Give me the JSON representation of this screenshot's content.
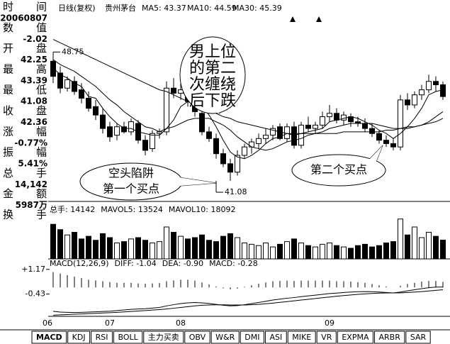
{
  "info_panel": {
    "rows": [
      {
        "label": [
          "时",
          "间"
        ],
        "value": 20060807
      },
      {
        "label": [
          "数",
          "值"
        ],
        "value": -2.02
      },
      {
        "label": [
          "开",
          "盘"
        ],
        "value": 42.25
      },
      {
        "label": [
          "最",
          "高"
        ],
        "value": 43.39
      },
      {
        "label": [
          "最",
          "低"
        ],
        "value": 41.08
      },
      {
        "label": [
          "收",
          "盘"
        ],
        "value": 42.36
      },
      {
        "label": [
          "涨",
          "幅"
        ],
        "value": "-0.77%"
      },
      {
        "label": [
          "振",
          "幅"
        ],
        "value": "5.41%"
      },
      {
        "label": [
          "总",
          "手"
        ],
        "value": "14,142"
      },
      {
        "label": [
          "金",
          "额"
        ],
        "value": "5987万"
      },
      {
        "label": [
          "换",
          "手"
        ]
      }
    ]
  },
  "chart_data": [
    {
      "type": "candlestick",
      "period": "日线(复权)",
      "title": "贵州茅台",
      "categories": [
        "06",
        null,
        null,
        null,
        null,
        null,
        null,
        null,
        "07",
        null,
        null,
        null,
        null,
        null,
        null,
        null,
        null,
        null,
        "08",
        null,
        null,
        null,
        null,
        null,
        null,
        null,
        null,
        null,
        null,
        null,
        null,
        null,
        null,
        null,
        null,
        null,
        null,
        null,
        null,
        "09",
        null,
        null,
        null,
        null,
        null,
        null,
        null,
        null,
        null,
        null,
        null,
        null,
        null,
        null,
        null,
        null
      ],
      "open": [
        48.2,
        47.5,
        46.6,
        47.0,
        46.5,
        46.0,
        45.5,
        45.0,
        44.3,
        43.8,
        44.3,
        44.0,
        44.5,
        43.5,
        43.0,
        43.9,
        44.0,
        46.6,
        46.3,
        46.6,
        45.8,
        45.1,
        44.0,
        43.6,
        42.7,
        42.1,
        41.6,
        42.6,
        43.1,
        43.3,
        43.6,
        43.8,
        44.3,
        43.6,
        44.3,
        43.2,
        44.4,
        44.2,
        44.4,
        44.9,
        45.1,
        44.7,
        44.9,
        44.6,
        44.5,
        44.2,
        43.9,
        43.5,
        43.3,
        43.1,
        45.9,
        45.6,
        46.2,
        46.5,
        47.0,
        46.8
      ],
      "high": [
        48.75,
        47.9,
        47.3,
        47.3,
        46.9,
        46.4,
        45.9,
        45.4,
        44.6,
        44.5,
        44.6,
        44.8,
        44.7,
        43.8,
        44.1,
        44.2,
        47.0,
        47.2,
        46.9,
        47.1,
        46.0,
        45.3,
        44.3,
        43.9,
        43.0,
        42.4,
        42.9,
        43.3,
        43.6,
        43.9,
        44.2,
        44.4,
        44.5,
        44.5,
        44.6,
        44.6,
        44.9,
        44.6,
        45.2,
        45.6,
        45.4,
        45.2,
        45.1,
        44.9,
        44.8,
        44.5,
        44.1,
        43.8,
        43.6,
        46.2,
        46.3,
        46.4,
        46.8,
        47.4,
        47.3,
        47.0
      ],
      "low": [
        46.9,
        46.3,
        46.4,
        46.2,
        45.7,
        45.2,
        44.7,
        43.9,
        43.4,
        43.5,
        43.9,
        43.8,
        43.3,
        42.6,
        42.8,
        43.6,
        43.8,
        46.0,
        45.9,
        45.5,
        44.9,
        43.8,
        43.4,
        42.4,
        41.9,
        41.08,
        41.4,
        42.4,
        42.7,
        43.0,
        43.3,
        43.5,
        43.5,
        43.4,
        43.0,
        43.0,
        44.0,
        43.9,
        44.2,
        44.6,
        44.5,
        44.4,
        44.3,
        44.3,
        44.0,
        43.7,
        43.3,
        43.1,
        42.9,
        42.9,
        45.3,
        45.4,
        45.9,
        46.3,
        46.4,
        45.9
      ],
      "close": [
        47.3,
        46.6,
        47.1,
        46.4,
        46.0,
        45.4,
        45.0,
        44.2,
        43.7,
        44.3,
        44.0,
        44.6,
        43.5,
        42.9,
        43.9,
        44.0,
        46.6,
        46.3,
        46.5,
        45.8,
        45.2,
        44.0,
        43.6,
        42.7,
        42.1,
        41.6,
        42.6,
        43.1,
        43.4,
        43.6,
        43.8,
        44.2,
        43.6,
        44.3,
        43.2,
        44.4,
        44.2,
        44.4,
        44.9,
        45.1,
        44.7,
        45.0,
        44.6,
        44.5,
        44.2,
        43.9,
        43.5,
        43.3,
        43.1,
        45.9,
        45.6,
        46.2,
        46.5,
        47.0,
        46.8,
        46.1
      ],
      "series": [
        {
          "name": "MA5: 43.37",
          "color": "#000000",
          "values": [
            47.8,
            47.4,
            47.2,
            46.9,
            46.7,
            46.1,
            46.0,
            45.4,
            44.9,
            44.5,
            44.2,
            44.2,
            44.0,
            43.9,
            43.8,
            43.8,
            44.2,
            44.7,
            45.5,
            45.8,
            46.1,
            45.6,
            45.0,
            44.3,
            43.5,
            42.8,
            42.5,
            42.4,
            42.6,
            42.9,
            43.3,
            43.6,
            43.7,
            43.9,
            43.8,
            43.9,
            44.0,
            44.1,
            44.2,
            44.6,
            44.7,
            44.8,
            44.9,
            44.8,
            44.6,
            44.4,
            44.1,
            43.9,
            43.6,
            43.9,
            44.3,
            44.8,
            45.4,
            46.2,
            46.4,
            46.5
          ]
        },
        {
          "name": "MA10: 44.59",
          "color": "#000000",
          "values": [
            48.3,
            48.0,
            47.8,
            47.6,
            47.3,
            47.0,
            46.7,
            46.3,
            45.9,
            45.6,
            45.2,
            44.9,
            44.6,
            44.3,
            44.2,
            44.0,
            44.2,
            44.3,
            44.5,
            44.7,
            44.8,
            44.8,
            44.8,
            44.6,
            44.4,
            44.1,
            43.7,
            43.4,
            43.1,
            43.0,
            42.9,
            43.0,
            43.2,
            43.4,
            43.5,
            43.6,
            43.8,
            43.9,
            44.0,
            44.2,
            44.3,
            44.4,
            44.5,
            44.5,
            44.5,
            44.5,
            44.4,
            44.3,
            44.2,
            44.2,
            44.2,
            44.3,
            44.4,
            44.6,
            44.9,
            45.2
          ]
        },
        {
          "name": "MA30: 45.39",
          "color": "#000000",
          "values": [
            49.5,
            49.3,
            49.1,
            48.9,
            48.7,
            48.5,
            48.3,
            48.1,
            47.9,
            47.7,
            47.5,
            47.3,
            47.1,
            46.9,
            46.7,
            46.5,
            46.4,
            46.2,
            46.0,
            45.8,
            45.6,
            45.5,
            45.3,
            45.1,
            44.9,
            44.8,
            44.6,
            44.5,
            44.4,
            44.3,
            44.2,
            44.1,
            44.0,
            43.9,
            43.9,
            43.9,
            43.9,
            43.9,
            43.9,
            43.9,
            43.9,
            44.0,
            44.0,
            44.0,
            44.0,
            44.0,
            44.0,
            44.1,
            44.1,
            44.2,
            44.3,
            44.3,
            44.4,
            44.5,
            44.6,
            44.8
          ]
        }
      ],
      "ylim": [
        39.9,
        51.0
      ],
      "price_marks": [
        48.75,
        41.08
      ],
      "callouts": [
        {
          "lines": [
            "男上位",
            "的第二",
            "次缠绕",
            "后下跌"
          ]
        },
        {
          "lines": [
            "空头陷阱",
            "第一个买点"
          ]
        },
        {
          "lines": [
            "第二个买点"
          ]
        }
      ]
    },
    {
      "type": "bar",
      "legend": [
        "总手: 14142",
        "MAVOL5: 13524",
        "MAVOL10: 18092"
      ],
      "values": [
        26000,
        22000,
        18000,
        20000,
        15000,
        17000,
        14000,
        19000,
        16000,
        12000,
        13000,
        15000,
        16000,
        14000,
        12000,
        13000,
        24000,
        20000,
        17000,
        15000,
        16000,
        18000,
        14000,
        13000,
        17000,
        19000,
        16000,
        12000,
        11000,
        10000,
        12000,
        9000,
        11000,
        13000,
        15000,
        12000,
        10000,
        9000,
        11000,
        12000,
        10000,
        9000,
        8000,
        10000,
        11000,
        9000,
        10000,
        12000,
        13000,
        30000,
        18000,
        24000,
        16000,
        20000,
        17000,
        14142
      ],
      "ylim": [
        0,
        32000
      ]
    },
    {
      "type": "macd",
      "title": "MACD(12,26,9)",
      "series": [
        {
          "name": "DIFF: -1.04",
          "color": "#000000",
          "values": [
            -1.55,
            -1.6,
            -1.62,
            -1.63,
            -1.62,
            -1.6,
            -1.58,
            -1.56,
            -1.54,
            -1.5,
            -1.46,
            -1.42,
            -1.4,
            -1.38,
            -1.34,
            -1.3,
            -1.2,
            -1.12,
            -1.05,
            -1.0,
            -0.98,
            -1.0,
            -1.04,
            -1.1,
            -1.16,
            -1.2,
            -1.18,
            -1.12,
            -1.05,
            -0.98,
            -0.9,
            -0.82,
            -0.76,
            -0.7,
            -0.66,
            -0.6,
            -0.55,
            -0.5,
            -0.45,
            -0.4,
            -0.37,
            -0.33,
            -0.3,
            -0.28,
            -0.27,
            -0.28,
            -0.3,
            -0.33,
            -0.36,
            -0.3,
            -0.22,
            -0.15,
            -0.08,
            -0.02,
            0.02,
            0.03
          ]
        },
        {
          "name": "DEA: -0.90",
          "color": "#000000",
          "values": [
            -1.8,
            -1.78,
            -1.76,
            -1.74,
            -1.72,
            -1.7,
            -1.68,
            -1.66,
            -1.64,
            -1.62,
            -1.59,
            -1.56,
            -1.53,
            -1.5,
            -1.47,
            -1.44,
            -1.4,
            -1.35,
            -1.3,
            -1.25,
            -1.2,
            -1.16,
            -1.14,
            -1.13,
            -1.13,
            -1.14,
            -1.14,
            -1.14,
            -1.12,
            -1.1,
            -1.06,
            -1.02,
            -0.97,
            -0.92,
            -0.87,
            -0.82,
            -0.77,
            -0.72,
            -0.67,
            -0.62,
            -0.57,
            -0.53,
            -0.49,
            -0.45,
            -0.42,
            -0.39,
            -0.37,
            -0.36,
            -0.36,
            -0.35,
            -0.33,
            -0.3,
            -0.27,
            -0.23,
            -0.19,
            -0.15
          ]
        },
        {
          "name": "MACD: -0.28",
          "color": "#000000",
          "values": [
            1.0,
            0.9,
            0.8,
            0.7,
            0.6,
            0.5,
            0.45,
            0.4,
            0.35,
            0.3,
            0.3,
            0.3,
            0.26,
            0.24,
            0.26,
            0.28,
            0.4,
            0.46,
            0.5,
            0.5,
            0.44,
            0.32,
            0.2,
            0.06,
            -0.06,
            -0.12,
            -0.08,
            0.04,
            0.14,
            0.24,
            0.32,
            0.4,
            0.42,
            0.44,
            0.42,
            0.44,
            0.44,
            0.44,
            0.44,
            0.44,
            0.4,
            0.4,
            0.38,
            0.34,
            0.3,
            0.22,
            0.14,
            0.06,
            0,
            0.1,
            0.22,
            0.3,
            0.38,
            0.42,
            0.42,
            0.36
          ]
        }
      ],
      "ylim": [
        -1.83,
        1.85
      ],
      "yticks": [
        {
          "value": 1.17,
          "label": "+1.17"
        },
        -0.43
      ]
    }
  ],
  "tabs": [
    "MACD",
    "KDJ",
    "RSI",
    "BOLL",
    "主力买卖",
    "OBV",
    "W&R",
    "DMI",
    "ASI",
    "MIKE",
    "VR",
    "EXPMA",
    "ARBR",
    "SAR"
  ]
}
